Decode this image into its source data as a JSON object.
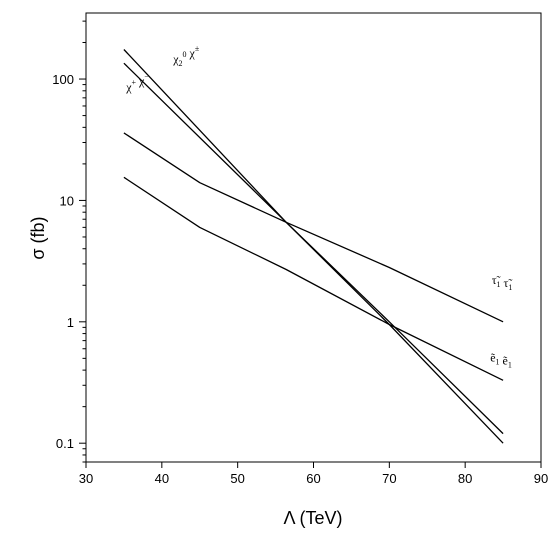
{
  "chart_data": {
    "type": "line",
    "xlabel": "Λ (TeV)",
    "ylabel": "σ (fb)",
    "xlim": [
      30,
      90
    ],
    "ylim": [
      0.07,
      350
    ],
    "yscale": "log",
    "grid": false,
    "x_ticks": [
      30,
      40,
      50,
      60,
      70,
      80,
      90
    ],
    "x_tick_labels": [
      "30",
      "40",
      "50",
      "60",
      "70",
      "80",
      "90"
    ],
    "y_ticks": [
      0.1,
      1,
      10,
      100
    ],
    "y_tick_labels": [
      "0.1",
      "1",
      "10",
      "100"
    ],
    "series": [
      {
        "x": [
          35,
          56.4,
          70,
          85
        ],
        "y": [
          175,
          6.6,
          1.0,
          0.12
        ]
      },
      {
        "x": [
          35,
          56.4,
          70,
          85
        ],
        "y": [
          135,
          6.6,
          0.95,
          0.1
        ]
      },
      {
        "x": [
          35,
          45,
          56.4,
          70,
          85
        ],
        "y": [
          36,
          14,
          6.6,
          2.8,
          1.0
        ]
      },
      {
        "x": [
          35,
          45,
          56.4,
          70,
          85
        ],
        "y": [
          15.5,
          6.0,
          2.7,
          0.95,
          0.33
        ]
      }
    ],
    "annotations": [
      {
        "base": [
          "χ",
          "χ"
        ],
        "sub": [
          "2",
          ""
        ],
        "sup": [
          "0",
          "±"
        ],
        "x": 41.5,
        "y": 135
      },
      {
        "base": [
          "χ",
          "χ"
        ],
        "sub": [
          "",
          ""
        ],
        "sup": [
          "+",
          "−"
        ],
        "x": 35.3,
        "y": 80
      },
      {
        "base": [
          "τ",
          "τ"
        ],
        "sub": [
          "1",
          "1"
        ],
        "tilde": true,
        "x": 83.5,
        "y": 2.05
      },
      {
        "base": [
          "e",
          "e"
        ],
        "sub": [
          "1",
          "1"
        ],
        "tilde": true,
        "x": 83.3,
        "y": 0.47
      }
    ]
  }
}
